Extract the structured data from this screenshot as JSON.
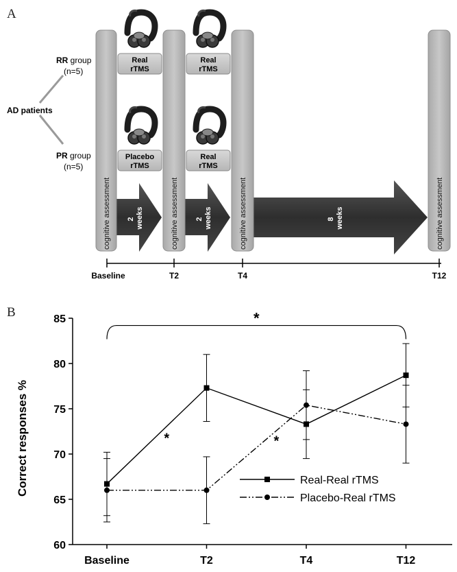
{
  "panel_a": {
    "letter": "A",
    "root_label": "AD patients",
    "rr_group": {
      "name": "RR",
      "word": " group",
      "n": "(n=5)"
    },
    "pr_group": {
      "name": "PR",
      "word": " group",
      "n": "(n=5)"
    },
    "assessment_label": "cognitive assessment",
    "boxes": {
      "rr_period1": [
        "Real",
        "rTMS"
      ],
      "rr_period2": [
        "Real",
        "rTMS"
      ],
      "pr_period1": [
        "Placebo",
        "rTMS"
      ],
      "pr_period2": [
        "Real",
        "rTMS"
      ]
    },
    "arrows": [
      [
        "2",
        "weeks"
      ],
      [
        "2",
        "weeks"
      ],
      [
        "8",
        "weeks"
      ]
    ],
    "timeline": [
      "Baseline",
      "T2",
      "T4",
      "T12"
    ],
    "icon": "rtms-coil-icon"
  },
  "panel_b": {
    "letter": "B"
  },
  "chart_data": {
    "type": "line",
    "categories": [
      "Baseline",
      "T2",
      "T4",
      "T12"
    ],
    "ylabel": "Correct responses %",
    "ylim": [
      60,
      85
    ],
    "yticks": [
      60,
      65,
      70,
      75,
      80,
      85
    ],
    "legend_position": "bottom-right",
    "series": [
      {
        "name": "Real-Real rTMS",
        "style": "solid",
        "marker": "square",
        "values": [
          66.7,
          77.3,
          73.3,
          78.7
        ],
        "err": [
          3.5,
          3.7,
          3.8,
          3.5
        ]
      },
      {
        "name": "Placebo-Real rTMS",
        "style": "dash-dot-dot",
        "marker": "circle",
        "values": [
          66.0,
          66.0,
          75.4,
          73.3
        ],
        "err": [
          3.5,
          3.7,
          3.8,
          4.3
        ]
      }
    ],
    "annotations": [
      {
        "text": "*",
        "type": "bracket",
        "from": "Baseline",
        "to": "T12",
        "y": 84.2
      },
      {
        "text": "*",
        "type": "star",
        "x": 0.6,
        "y": 72.0
      },
      {
        "text": "*",
        "type": "star",
        "x": 1.7,
        "y": 71.7
      }
    ]
  }
}
